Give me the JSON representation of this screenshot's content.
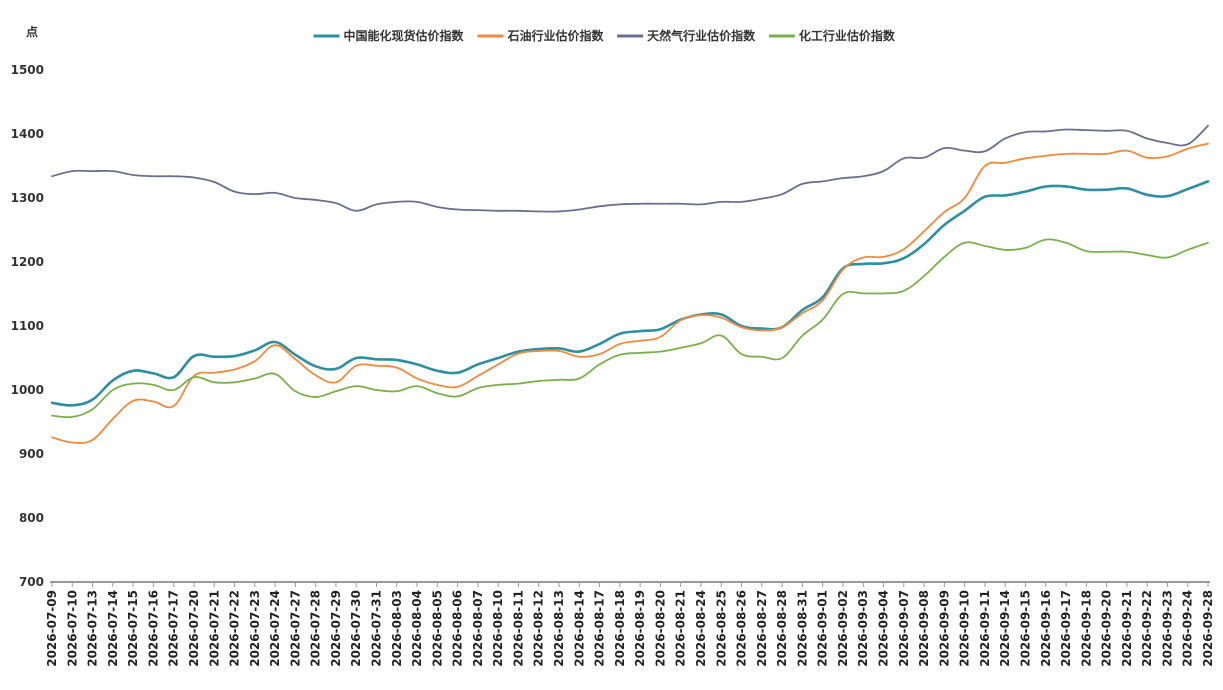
{
  "chart_data": {
    "type": "line",
    "title": "",
    "ylabel": "点",
    "xlabel": "",
    "ylim": [
      700,
      1500
    ],
    "yticks": [
      700,
      800,
      900,
      1000,
      1100,
      1200,
      1300,
      1400,
      1500
    ],
    "grid": false,
    "legend_position": "top-center",
    "categories": [
      "2026-07-09",
      "2026-07-10",
      "2026-07-13",
      "2026-07-14",
      "2026-07-15",
      "2026-07-16",
      "2026-07-17",
      "2026-07-20",
      "2026-07-21",
      "2026-07-22",
      "2026-07-23",
      "2026-07-24",
      "2026-07-27",
      "2026-07-28",
      "2026-07-29",
      "2026-07-30",
      "2026-07-31",
      "2026-08-03",
      "2026-08-04",
      "2026-08-05",
      "2026-08-06",
      "2026-08-07",
      "2026-08-10",
      "2026-08-11",
      "2026-08-12",
      "2026-08-13",
      "2026-08-14",
      "2026-08-17",
      "2026-08-18",
      "2026-08-19",
      "2026-08-20",
      "2026-08-21",
      "2026-08-24",
      "2026-08-25",
      "2026-08-26",
      "2026-08-27",
      "2026-08-28",
      "2026-08-31",
      "2026-09-01",
      "2026-09-02",
      "2026-09-03",
      "2026-09-04",
      "2026-09-07",
      "2026-09-08",
      "2026-09-09",
      "2026-09-10",
      "2026-09-11",
      "2026-09-14",
      "2026-09-15",
      "2026-09-16",
      "2026-09-17",
      "2026-09-18",
      "2026-09-20",
      "2026-09-21",
      "2026-09-22",
      "2026-09-23",
      "2026-09-24",
      "2026-09-28"
    ],
    "series": [
      {
        "name": "中国能化现货估价指数",
        "color": "#2e8fa3",
        "values": [
          980,
          976,
          985,
          1015,
          1030,
          1026,
          1020,
          1053,
          1052,
          1053,
          1062,
          1075,
          1055,
          1037,
          1033,
          1050,
          1048,
          1047,
          1040,
          1030,
          1027,
          1040,
          1050,
          1060,
          1064,
          1065,
          1060,
          1072,
          1088,
          1092,
          1095,
          1110,
          1118,
          1118,
          1100,
          1096,
          1098,
          1125,
          1145,
          1190,
          1197,
          1198,
          1206,
          1228,
          1258,
          1280,
          1302,
          1304,
          1310,
          1318,
          1318,
          1313,
          1313,
          1315,
          1305,
          1303,
          1314,
          1326
        ]
      },
      {
        "name": "石油行业估价指数",
        "color": "#f08a3c",
        "values": [
          926,
          918,
          922,
          955,
          983,
          982,
          975,
          1022,
          1027,
          1032,
          1045,
          1070,
          1048,
          1023,
          1012,
          1038,
          1038,
          1035,
          1018,
          1008,
          1005,
          1022,
          1040,
          1057,
          1061,
          1061,
          1052,
          1056,
          1072,
          1077,
          1083,
          1109,
          1117,
          1113,
          1098,
          1093,
          1098,
          1120,
          1140,
          1188,
          1207,
          1208,
          1220,
          1248,
          1278,
          1300,
          1350,
          1355,
          1362,
          1366,
          1369,
          1369,
          1369,
          1374,
          1363,
          1365,
          1377,
          1385
        ]
      },
      {
        "name": "天然气行业估价指数",
        "color": "#6b6e8f",
        "values": [
          1334,
          1342,
          1342,
          1342,
          1336,
          1334,
          1334,
          1332,
          1325,
          1310,
          1306,
          1308,
          1300,
          1297,
          1292,
          1280,
          1290,
          1294,
          1294,
          1286,
          1282,
          1281,
          1280,
          1280,
          1279,
          1279,
          1282,
          1287,
          1290,
          1291,
          1291,
          1291,
          1290,
          1294,
          1294,
          1299,
          1306,
          1322,
          1326,
          1331,
          1334,
          1342,
          1362,
          1363,
          1378,
          1374,
          1373,
          1393,
          1403,
          1404,
          1407,
          1406,
          1405,
          1405,
          1393,
          1386,
          1384,
          1413
        ]
      },
      {
        "name": "化工行业估价指数",
        "color": "#79b04a",
        "values": [
          960,
          958,
          970,
          1000,
          1010,
          1008,
          1000,
          1020,
          1012,
          1012,
          1018,
          1025,
          998,
          989,
          998,
          1006,
          1000,
          998,
          1006,
          995,
          990,
          1003,
          1008,
          1010,
          1014,
          1016,
          1018,
          1040,
          1055,
          1058,
          1060,
          1066,
          1073,
          1085,
          1056,
          1052,
          1050,
          1085,
          1110,
          1150,
          1151,
          1151,
          1155,
          1178,
          1208,
          1230,
          1225,
          1219,
          1222,
          1235,
          1230,
          1217,
          1216,
          1216,
          1211,
          1207,
          1219,
          1230
        ]
      }
    ]
  }
}
